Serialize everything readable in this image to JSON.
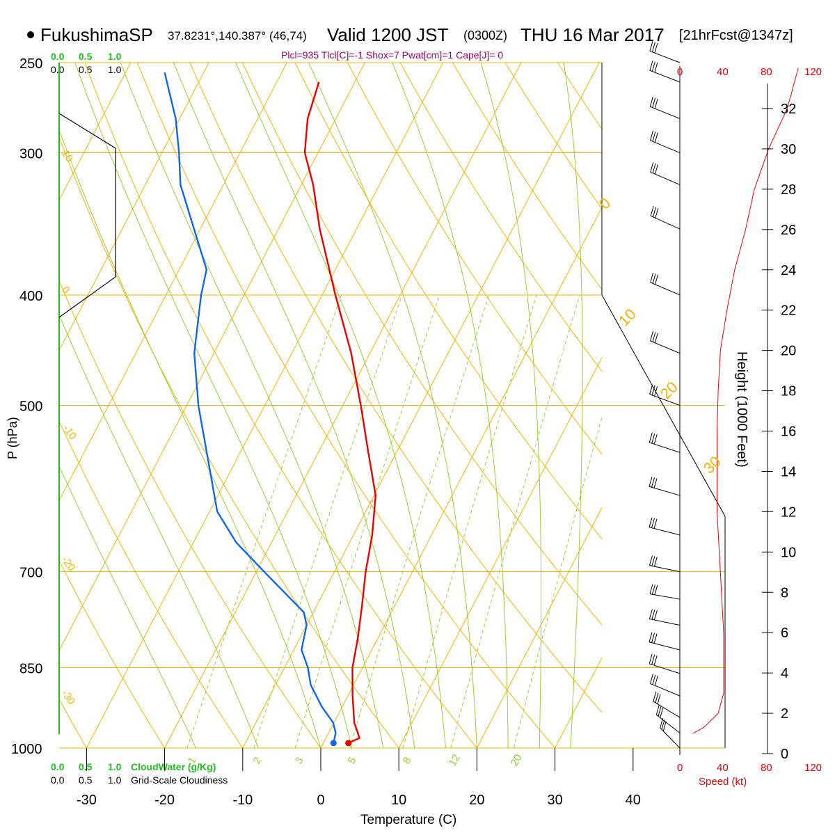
{
  "header": {
    "station_name": "FukushimaSP",
    "coords": "37.8231°,140.387° (46,74)",
    "valid": "Valid 1200 JST",
    "zulu": "(0300Z)",
    "date": "THU 16 Mar 2017",
    "forecast": "[21hrFcst@1347z]",
    "indices": "Plcl=935 Tlcl[C]=-1 Shox=7 Pwat[cm]=1 Cape[J]= 0"
  },
  "cloud_scale": {
    "top_values": [
      "0.0",
      "0.5",
      "1.0"
    ],
    "bottom_cloudwater_label": "CloudWater (g/Kg)",
    "bottom_cloudiness_label": "Grid-Scale Cloudiness"
  },
  "colors": {
    "temperature": "#ee0000",
    "dewpoint": "#1166ee",
    "isotherm": "#f0b400",
    "dry_adiabat": "#f0b400",
    "moist_adiabat": "#99cc33",
    "mixing_ratio": "#99cc33",
    "cloudwater": "#22bb22",
    "speed_axis": "#ee0000",
    "header_indices": "#990066"
  },
  "chart_data": {
    "type": "line",
    "title": "FukushimaSP Valid 1200 JST (0300Z) THU 16 Mar 2017",
    "xlabel": "Temperature (C)",
    "ylabel": "P (hPa)",
    "right_ylabel": "Height (1000 Feet)",
    "speed_label": "Speed (kt)",
    "x_ticks": [
      -30,
      -20,
      -10,
      0,
      10,
      20,
      30,
      40
    ],
    "pressure_ticks": [
      250,
      300,
      400,
      500,
      700,
      850,
      1000
    ],
    "height_ticks": [
      0,
      2,
      4,
      6,
      8,
      10,
      12,
      14,
      16,
      18,
      20,
      22,
      24,
      26,
      28,
      30,
      32
    ],
    "speed_ticks": [
      0,
      40,
      80,
      120
    ],
    "adiabat_labels": [
      "10",
      "0",
      "-10",
      "-20",
      "-30"
    ],
    "isotherm_labels": [
      "0",
      "10",
      "20",
      "30"
    ],
    "mixing_ratio_labels": [
      "1",
      "2",
      "3",
      "5",
      "8",
      "12",
      "20"
    ],
    "xlim": [
      -34,
      36
    ],
    "ylim_hPa": [
      1000,
      250
    ],
    "series": [
      {
        "name": "Temperature",
        "points": [
          [
            990,
            3.2
          ],
          [
            980,
            4.3
          ],
          [
            950,
            2.6
          ],
          [
            900,
            0.6
          ],
          [
            850,
            -1.3
          ],
          [
            800,
            -2.6
          ],
          [
            750,
            -4.2
          ],
          [
            700,
            -6.0
          ],
          [
            650,
            -7.6
          ],
          [
            600,
            -9.8
          ],
          [
            550,
            -13.6
          ],
          [
            500,
            -17.7
          ],
          [
            450,
            -22.4
          ],
          [
            400,
            -28.3
          ],
          [
            350,
            -34.7
          ],
          [
            320,
            -38.5
          ],
          [
            300,
            -41.7
          ],
          [
            280,
            -43.6
          ],
          [
            260,
            -44.6
          ]
        ]
      },
      {
        "name": "Dewpoint",
        "points": [
          [
            990,
            1.3
          ],
          [
            970,
            0.9
          ],
          [
            950,
            -0.1
          ],
          [
            920,
            -2.6
          ],
          [
            880,
            -5.5
          ],
          [
            850,
            -7.0
          ],
          [
            820,
            -9.0
          ],
          [
            780,
            -10.0
          ],
          [
            760,
            -11.2
          ],
          [
            700,
            -19.0
          ],
          [
            660,
            -24.5
          ],
          [
            620,
            -29.0
          ],
          [
            560,
            -33.5
          ],
          [
            500,
            -38.5
          ],
          [
            450,
            -42.5
          ],
          [
            400,
            -45.5
          ],
          [
            380,
            -46.5
          ],
          [
            350,
            -50.8
          ],
          [
            320,
            -55.5
          ],
          [
            300,
            -57.8
          ],
          [
            280,
            -60.5
          ],
          [
            255,
            -65.0
          ]
        ]
      }
    ],
    "wind_speed_profile": [
      [
        1.0,
        12
      ],
      [
        1.3,
        22
      ],
      [
        2.0,
        35
      ],
      [
        3.0,
        40
      ],
      [
        4.0,
        40
      ],
      [
        6.0,
        40
      ],
      [
        8.0,
        38
      ],
      [
        10.0,
        36
      ],
      [
        12.0,
        34
      ],
      [
        14.0,
        34
      ],
      [
        16.0,
        34
      ],
      [
        18.0,
        35
      ],
      [
        20.0,
        37
      ],
      [
        22.0,
        43
      ],
      [
        24.0,
        50
      ],
      [
        26.0,
        60
      ],
      [
        28.0,
        68
      ],
      [
        30.0,
        81
      ],
      [
        32.0,
        98
      ],
      [
        34.0,
        108
      ]
    ],
    "wind_barbs": [
      [
        1000,
        320
      ],
      [
        970,
        310
      ],
      [
        940,
        300
      ],
      [
        900,
        285
      ],
      [
        860,
        275
      ],
      [
        820,
        268
      ],
      [
        780,
        262
      ],
      [
        740,
        258
      ],
      [
        700,
        262
      ],
      [
        650,
        268
      ],
      [
        600,
        272
      ],
      [
        550,
        276
      ],
      [
        500,
        280
      ],
      [
        450,
        285
      ],
      [
        400,
        286
      ],
      [
        350,
        288
      ],
      [
        320,
        286
      ],
      [
        300,
        285
      ],
      [
        280,
        284
      ],
      [
        260,
        282
      ],
      [
        250,
        282
      ]
    ]
  }
}
